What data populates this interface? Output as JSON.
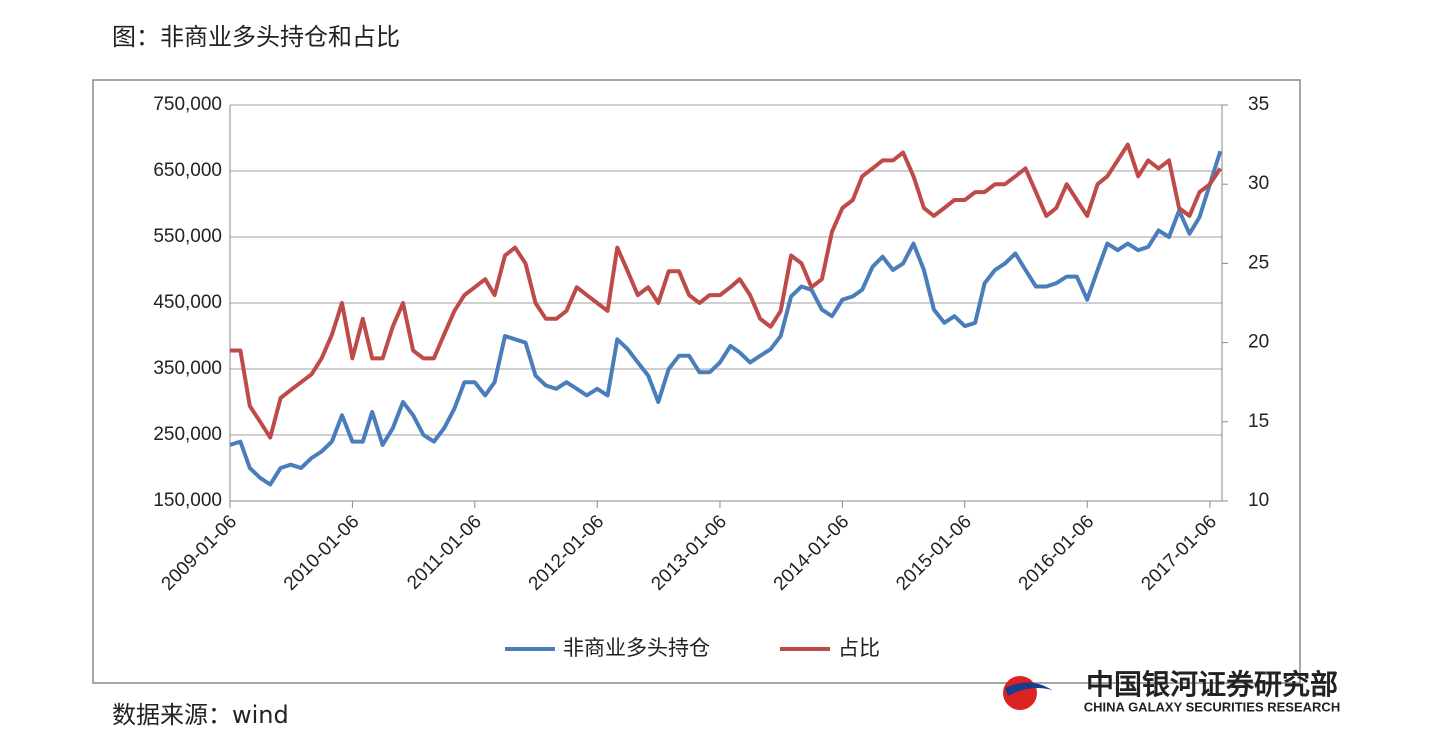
{
  "chart_data": {
    "type": "line",
    "title": "图：非商业多头持仓和占比",
    "source": "数据来源：wind",
    "logo_cn": "中国银河证券研究部",
    "logo_en": "CHINA GALAXY SECURITIES RESEARCH",
    "x": [
      "2009-01-06",
      "2009-02-06",
      "2009-03-06",
      "2009-04-06",
      "2009-05-06",
      "2009-06-06",
      "2009-07-06",
      "2009-08-06",
      "2009-09-06",
      "2009-10-06",
      "2009-11-06",
      "2009-12-06",
      "2010-01-06",
      "2010-02-06",
      "2010-03-06",
      "2010-04-06",
      "2010-05-06",
      "2010-06-06",
      "2010-07-06",
      "2010-08-06",
      "2010-09-06",
      "2010-10-06",
      "2010-11-06",
      "2010-12-06",
      "2011-01-06",
      "2011-02-06",
      "2011-03-06",
      "2011-04-06",
      "2011-05-06",
      "2011-06-06",
      "2011-07-06",
      "2011-08-06",
      "2011-09-06",
      "2011-10-06",
      "2011-11-06",
      "2011-12-06",
      "2012-01-06",
      "2012-02-06",
      "2012-03-06",
      "2012-04-06",
      "2012-05-06",
      "2012-06-06",
      "2012-07-06",
      "2012-08-06",
      "2012-09-06",
      "2012-10-06",
      "2012-11-06",
      "2012-12-06",
      "2013-01-06",
      "2013-02-06",
      "2013-03-06",
      "2013-04-06",
      "2013-05-06",
      "2013-06-06",
      "2013-07-06",
      "2013-08-06",
      "2013-09-06",
      "2013-10-06",
      "2013-11-06",
      "2013-12-06",
      "2014-01-06",
      "2014-02-06",
      "2014-03-06",
      "2014-04-06",
      "2014-05-06",
      "2014-06-06",
      "2014-07-06",
      "2014-08-06",
      "2014-09-06",
      "2014-10-06",
      "2014-11-06",
      "2014-12-06",
      "2015-01-06",
      "2015-02-06",
      "2015-03-06",
      "2015-04-06",
      "2015-05-06",
      "2015-06-06",
      "2015-07-06",
      "2015-08-06",
      "2015-09-06",
      "2015-10-06",
      "2015-11-06",
      "2015-12-06",
      "2016-01-06",
      "2016-02-06",
      "2016-03-06",
      "2016-04-06",
      "2016-05-06",
      "2016-06-06",
      "2016-07-06",
      "2016-08-06",
      "2016-09-06",
      "2016-10-06",
      "2016-11-06",
      "2016-12-06",
      "2017-01-06",
      "2017-02-06"
    ],
    "xlim": [
      "2009-01-06",
      "2017-02-11"
    ],
    "xticks": [
      "2009-01-06",
      "2010-01-06",
      "2011-01-06",
      "2012-01-06",
      "2013-01-06",
      "2014-01-06",
      "2015-01-06",
      "2016-01-06",
      "2017-01-06"
    ],
    "ylim": [
      150000,
      750000
    ],
    "yticks": [
      {
        "value": 150000,
        "label": "150,000"
      },
      {
        "value": 250000,
        "label": "250,000"
      },
      {
        "value": 350000,
        "label": "350,000"
      },
      {
        "value": 450000,
        "label": "450,000"
      },
      {
        "value": 550000,
        "label": "550,000"
      },
      {
        "value": 650000,
        "label": "650,000"
      },
      {
        "value": 750000,
        "label": "750,000"
      }
    ],
    "y2lim": [
      10,
      35
    ],
    "y2ticks": [
      10,
      15,
      20,
      25,
      30,
      35
    ],
    "grid": true,
    "series": [
      {
        "name": "非商业多头持仓",
        "color": "#4a7ebb",
        "values": [
          235000,
          240000,
          200000,
          185000,
          175000,
          200000,
          205000,
          200000,
          215000,
          225000,
          240000,
          280000,
          240000,
          240000,
          285000,
          235000,
          260000,
          300000,
          280000,
          250000,
          240000,
          260000,
          290000,
          330000,
          330000,
          310000,
          330000,
          400000,
          395000,
          390000,
          340000,
          325000,
          320000,
          330000,
          320000,
          310000,
          320000,
          310000,
          395000,
          380000,
          360000,
          340000,
          300000,
          350000,
          370000,
          370000,
          345000,
          345000,
          360000,
          385000,
          375000,
          360000,
          370000,
          380000,
          400000,
          460000,
          475000,
          470000,
          440000,
          430000,
          455000,
          460000,
          470000,
          505000,
          520000,
          500000,
          510000,
          540000,
          500000,
          440000,
          420000,
          430000,
          415000,
          420000,
          480000,
          500000,
          510000,
          525000,
          500000,
          475000,
          475000,
          480000,
          490000,
          490000,
          455000,
          500000,
          540000,
          530000,
          540000,
          530000,
          535000,
          560000,
          550000,
          590000,
          555000,
          580000,
          630000,
          680000
        ]
      },
      {
        "name": "占比",
        "color": "#be4b48",
        "axis": "y2",
        "values": [
          19.5,
          19.5,
          16,
          15,
          14,
          16.5,
          17,
          17.5,
          18,
          19,
          20.5,
          22.5,
          19,
          21.5,
          19,
          19,
          21,
          22.5,
          19.5,
          19,
          19,
          20.5,
          22,
          23,
          23.5,
          24,
          23,
          25.5,
          26,
          25,
          22.5,
          21.5,
          21.5,
          22,
          23.5,
          23,
          22.5,
          22,
          26,
          24.5,
          23,
          23.5,
          22.5,
          24.5,
          24.5,
          23,
          22.5,
          23,
          23,
          23.5,
          24,
          23,
          21.5,
          21,
          22,
          25.5,
          25,
          23.5,
          24,
          27,
          28.5,
          29,
          30.5,
          31,
          31.5,
          31.5,
          32,
          30.5,
          28.5,
          28,
          28.5,
          29,
          29,
          29.5,
          29.5,
          30,
          30,
          30.5,
          31,
          29.5,
          28,
          28.5,
          30,
          29,
          28,
          30,
          30.5,
          31.5,
          32.5,
          30.5,
          31.5,
          31,
          31.5,
          28.5,
          28,
          29.5,
          30,
          31
        ]
      }
    ]
  }
}
